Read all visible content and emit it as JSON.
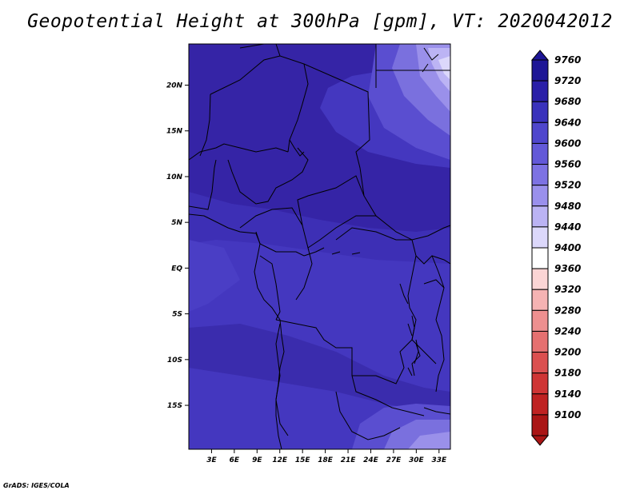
{
  "title": "Geopotential Height at 300hPa [gpm], VT: 2020042012",
  "credit": "GrADS: IGES/COLA",
  "map": {
    "lon_labels": [
      "3E",
      "6E",
      "9E",
      "12E",
      "15E",
      "18E",
      "21E",
      "24E",
      "27E",
      "30E",
      "33E"
    ],
    "lat_labels": [
      "20N",
      "15N",
      "10N",
      "5N",
      "EQ",
      "5S",
      "10S",
      "15S"
    ],
    "lon_range": [
      0,
      34.5
    ],
    "lat_range": [
      -19.8,
      24.5
    ],
    "border_color": "#000000"
  },
  "colorbar": {
    "levels": [
      "9760",
      "9720",
      "9680",
      "9640",
      "9600",
      "9560",
      "9520",
      "9480",
      "9440",
      "9400",
      "9360",
      "9320",
      "9280",
      "9240",
      "9200",
      "9180",
      "9140",
      "9100"
    ],
    "colors": [
      "#1e1696",
      "#2a1fa8",
      "#3a32bc",
      "#4f46cc",
      "#6359d8",
      "#7d72e3",
      "#9a90ec",
      "#bbb3f4",
      "#dcd8fb",
      "#ffffff",
      "#fbd5d5",
      "#f5b3b3",
      "#ee9090",
      "#e57070",
      "#db5050",
      "#cf3535",
      "#bf2222",
      "#aa1515"
    ]
  },
  "field_colors": {
    "deep": "#3524a6",
    "mid": "#3d2fb5",
    "main": "#4437bf",
    "light": "#4e42c8",
    "lighter": "#5e52d2",
    "pale1": "#7a70de",
    "pale2": "#9a90ea",
    "pale3": "#bcb4f4",
    "pale4": "#dcd8fb"
  }
}
